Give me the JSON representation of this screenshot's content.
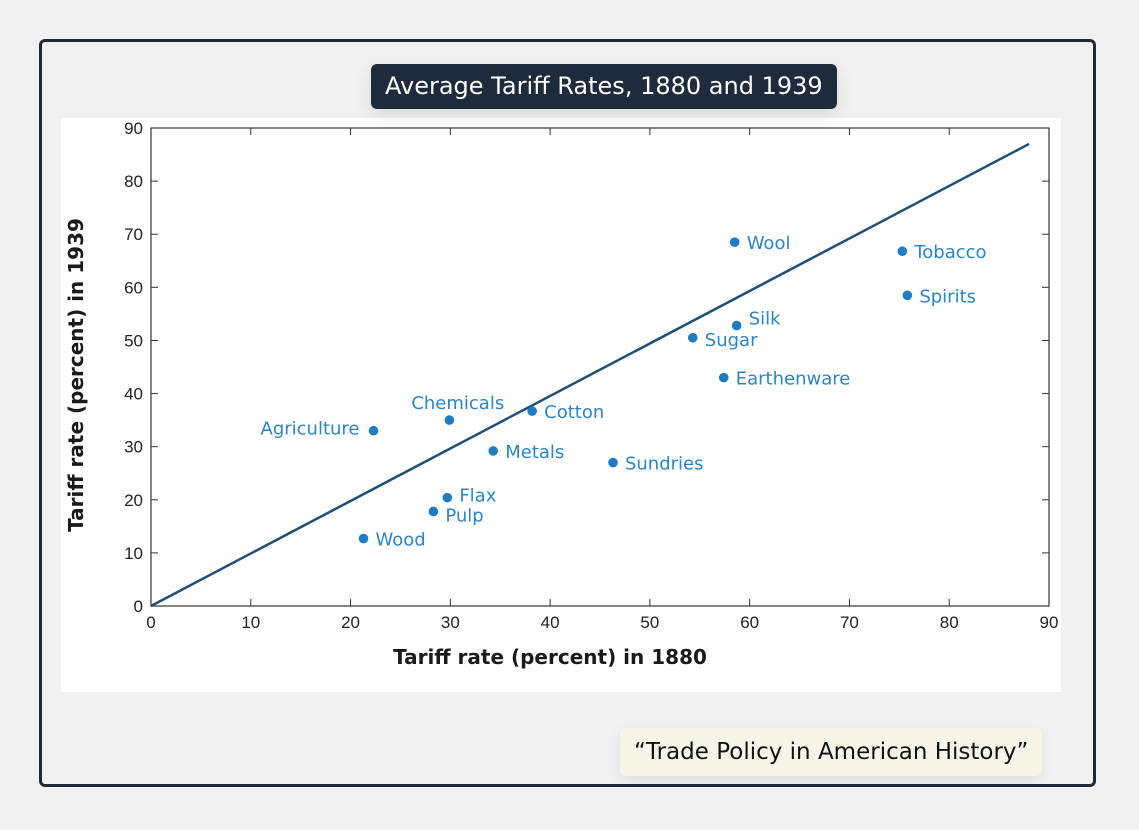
{
  "title": "Average Tariff Rates, 1880 and 1939",
  "caption": "“Trade Policy in American History”",
  "colors": {
    "point": "#1d7cc4",
    "label": "#2a86c9",
    "line": "#1e4f7a",
    "axis": "#333333",
    "title_bg": "#1e2b3c"
  },
  "chart_data": {
    "type": "scatter",
    "xlabel": "Tariff rate (percent) in 1880",
    "ylabel": "Tariff rate (percent) in 1939",
    "xlim": [
      0,
      90
    ],
    "ylim": [
      0,
      90
    ],
    "xticks": [
      0,
      10,
      20,
      30,
      40,
      50,
      60,
      70,
      80,
      90
    ],
    "yticks": [
      0,
      10,
      20,
      30,
      40,
      50,
      60,
      70,
      80,
      90
    ],
    "grid": false,
    "reference_line": {
      "from": [
        0,
        0
      ],
      "to": [
        88,
        87
      ]
    },
    "points": [
      {
        "name": "Wool",
        "x": 58.5,
        "y": 68.5
      },
      {
        "name": "Tobacco",
        "x": 75.3,
        "y": 66.8
      },
      {
        "name": "Spirits",
        "x": 75.8,
        "y": 58.5
      },
      {
        "name": "Silk",
        "x": 58.7,
        "y": 52.8
      },
      {
        "name": "Sugar",
        "x": 54.3,
        "y": 50.5
      },
      {
        "name": "Earthenware",
        "x": 57.4,
        "y": 43
      },
      {
        "name": "Chemicals",
        "x": 29.9,
        "y": 35
      },
      {
        "name": "Cotton",
        "x": 38.2,
        "y": 36.7
      },
      {
        "name": "Agriculture",
        "x": 22.3,
        "y": 33
      },
      {
        "name": "Metals",
        "x": 34.3,
        "y": 29.2
      },
      {
        "name": "Sundries",
        "x": 46.3,
        "y": 27
      },
      {
        "name": "Flax",
        "x": 29.7,
        "y": 20.4
      },
      {
        "name": "Pulp",
        "x": 28.3,
        "y": 17.8
      },
      {
        "name": "Wood",
        "x": 21.3,
        "y": 12.7
      }
    ]
  }
}
